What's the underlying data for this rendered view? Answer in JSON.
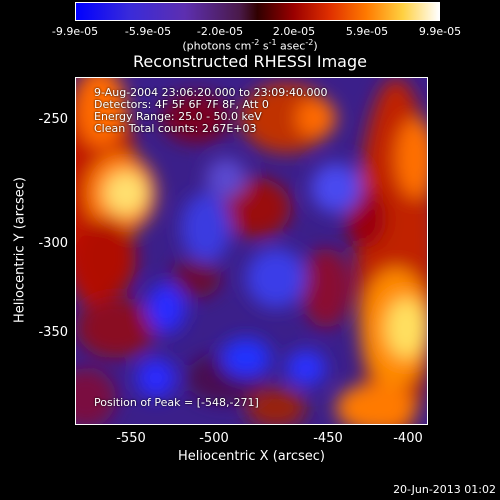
{
  "colorbar": {
    "ticks": [
      "-9.9e-05",
      "-5.9e-05",
      "-2.0e-05",
      "2.0e-05",
      "5.9e-05",
      "9.9e-05"
    ],
    "units_main": "(photons cm",
    "units_sup1": "-2",
    "units_mid": " s",
    "units_sup2": "-1",
    "units_end": " asec",
    "units_sup3": "-2",
    "units_close": ")"
  },
  "title": "Reconstructed RHESSI Image",
  "annotations": {
    "line1": "9-Aug-2004 23:06:20.000 to 23:09:40.000",
    "line2": "Detectors: 4F 5F 6F 7F 8F, Att 0",
    "line3": "Energy Range: 25.0 - 50.0 keV",
    "line4": "Clean    Total counts: 2.67E+03",
    "peak": "Position of Peak = [-548,-271]"
  },
  "axes": {
    "xlabel": "Heliocentric X (arcsec)",
    "ylabel": "Heliocentric Y (arcsec)",
    "xticks": [
      "-550",
      "-500",
      "-450",
      "-400"
    ],
    "yticks": [
      "-250",
      "-300",
      "-350"
    ]
  },
  "timestamp": "20-Jun-2013 01:02",
  "colors": {
    "background": "#000000",
    "negative": "#1a1aff",
    "positive": "#ffff80"
  }
}
